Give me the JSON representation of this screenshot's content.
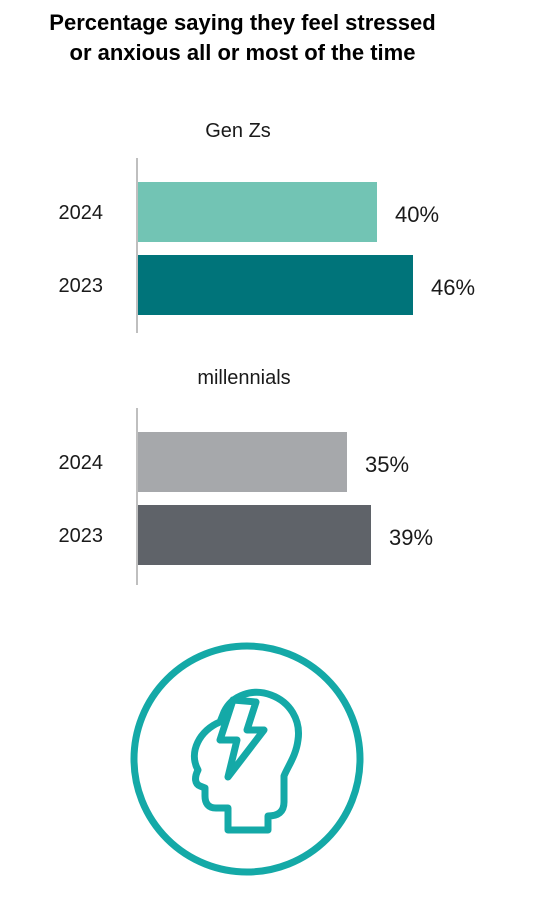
{
  "title": {
    "line1": "Percentage saying they feel stressed",
    "line2": "or anxious all or most of the time"
  },
  "colors": {
    "gen_z_2024": "#72C4B4",
    "gen_z_2023": "#00747A",
    "millennials_2024": "#A6A8AB",
    "millennials_2023": "#5F6369",
    "axis": "#bfbfbf",
    "icon": "#14A9A7"
  },
  "icon": "stressed-head-lightning-icon",
  "chart_data": [
    {
      "type": "bar",
      "orientation": "horizontal",
      "group": "Gen Zs",
      "categories": [
        "2024",
        "2023"
      ],
      "values": [
        40,
        46
      ],
      "value_labels": [
        "40%",
        "46%"
      ],
      "xlim": [
        0,
        50
      ],
      "grid": false
    },
    {
      "type": "bar",
      "orientation": "horizontal",
      "group": "millennials",
      "categories": [
        "2024",
        "2023"
      ],
      "values": [
        35,
        39
      ],
      "value_labels": [
        "35%",
        "39%"
      ],
      "xlim": [
        0,
        50
      ],
      "grid": false
    }
  ]
}
